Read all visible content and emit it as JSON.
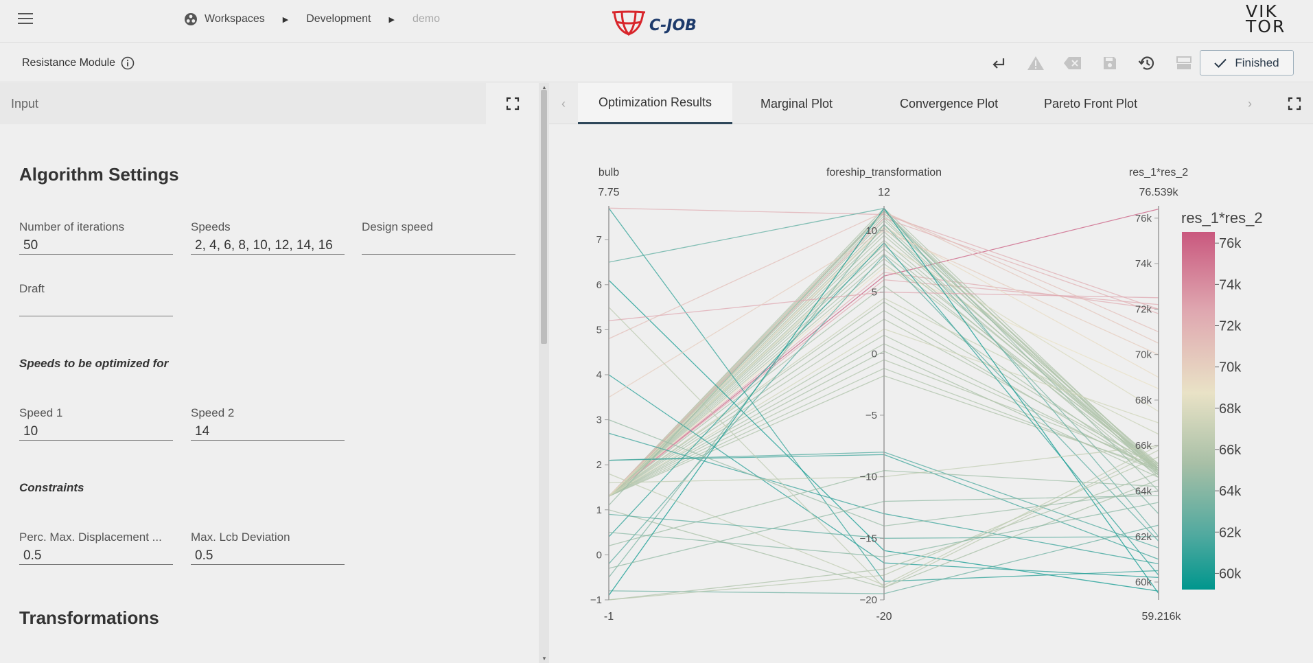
{
  "header": {
    "breadcrumbs": [
      {
        "label": "Workspaces"
      },
      {
        "label": "Development"
      },
      {
        "label": "demo"
      }
    ],
    "cjob_logo_text": "C-JOB",
    "viktor_logo_line1": "VIK",
    "viktor_logo_line2": "TOR"
  },
  "subbar": {
    "module_title": "Resistance Module",
    "finished_label": "Finished"
  },
  "left": {
    "panel_title": "Input",
    "algorithm_title": "Algorithm Settings",
    "fields": {
      "iterations": {
        "label": "Number of iterations",
        "value": "50"
      },
      "speeds": {
        "label": "Speeds",
        "value": "2, 4, 6, 8, 10, 12, 14, 16"
      },
      "design_speed": {
        "label": "Design speed",
        "value": ""
      },
      "draft": {
        "label": "Draft",
        "value": ""
      },
      "speed1": {
        "label": "Speed 1",
        "value": "10"
      },
      "speed2": {
        "label": "Speed 2",
        "value": "14"
      },
      "perc_disp": {
        "label": "Perc. Max. Displacement ...",
        "value": "0.5"
      },
      "lcb_dev": {
        "label": "Max. Lcb Deviation",
        "value": "0.5"
      }
    },
    "speeds_section": "Speeds to be optimized for",
    "constraints_section": "Constraints",
    "transformations_title": "Transformations"
  },
  "tabs": [
    {
      "label": "Optimization Results"
    },
    {
      "label": "Marginal Plot"
    },
    {
      "label": "Convergence Plot"
    },
    {
      "label": "Pareto Front Plot"
    }
  ],
  "chart_data": {
    "type": "parallel_coordinates",
    "dimensions": [
      {
        "label": "bulb",
        "range": [
          -1,
          7.75
        ],
        "range_labels": [
          "7.75",
          "-1"
        ],
        "ticks": [
          "7",
          "6",
          "5",
          "4",
          "3",
          "2",
          "1",
          "0",
          "-1"
        ]
      },
      {
        "label": "foreship_transformation",
        "range": [
          -20,
          12
        ],
        "range_labels": [
          "12",
          "-20"
        ],
        "ticks": [
          "10",
          "5",
          "0",
          "-5",
          "-10",
          "-15",
          "-20"
        ]
      },
      {
        "label": "res_1*res_2",
        "range": [
          59216,
          76539
        ],
        "range_labels": [
          "76.539k",
          "59.216k"
        ],
        "ticks": [
          "76k",
          "74k",
          "72k",
          "70k",
          "68k",
          "66k",
          "64k",
          "62k",
          "60k"
        ]
      }
    ],
    "colorbar": {
      "title": "res_1*res_2",
      "ticks": [
        "76k",
        "74k",
        "72k",
        "70k",
        "68k",
        "66k",
        "64k",
        "62k",
        "60k"
      ],
      "colors": [
        "#c9587e",
        "#dfa7b0",
        "#e9e2c6",
        "#a7bfa6",
        "#4fa99f",
        "#00968d"
      ]
    },
    "lines": [
      [
        1.3,
        6.3,
        76.4
      ],
      [
        1.3,
        6.6,
        72.0
      ],
      [
        1.3,
        6.0,
        72.2
      ],
      [
        1.3,
        7.0,
        68.5
      ],
      [
        1.3,
        11.8,
        65.0
      ],
      [
        1.3,
        11.6,
        64.8
      ],
      [
        1.3,
        11.4,
        64.9
      ],
      [
        1.3,
        11.2,
        65.1
      ],
      [
        1.3,
        11.0,
        64.7
      ],
      [
        1.3,
        10.8,
        65.0
      ],
      [
        1.3,
        10.5,
        64.9
      ],
      [
        1.3,
        10.2,
        65.2
      ],
      [
        1.3,
        9.9,
        64.8
      ],
      [
        1.3,
        9.6,
        65.0
      ],
      [
        1.3,
        9.2,
        64.9
      ],
      [
        1.3,
        8.8,
        65.1
      ],
      [
        1.3,
        8.5,
        64.6
      ],
      [
        1.3,
        8.1,
        65.0
      ],
      [
        1.3,
        7.7,
        64.9
      ],
      [
        1.3,
        7.3,
        65.2
      ],
      [
        1.3,
        5.5,
        64.7
      ],
      [
        1.3,
        4.2,
        65.0
      ],
      [
        1.3,
        3.5,
        64.8
      ],
      [
        1.3,
        2.8,
        65.1
      ],
      [
        1.3,
        1.5,
        64.9
      ],
      [
        1.3,
        0.8,
        65.0
      ],
      [
        1.3,
        0.2,
        64.6
      ],
      [
        1.3,
        -0.5,
        65.2
      ],
      [
        1.3,
        -1.2,
        64.9
      ],
      [
        1.3,
        -1.8,
        65.0
      ],
      [
        1.3,
        11.5,
        70.5
      ],
      [
        1.3,
        11.0,
        71.8
      ],
      [
        1.3,
        10.3,
        69.0
      ],
      [
        1.3,
        9.0,
        67.5
      ],
      [
        1.3,
        4.5,
        66.5
      ],
      [
        1.3,
        2.0,
        67.0
      ],
      [
        7.7,
        11.3,
        72.0
      ],
      [
        7.7,
        -18.5,
        60.5
      ],
      [
        6.5,
        11.8,
        62.0
      ],
      [
        6.1,
        -16.0,
        59.6
      ],
      [
        5.2,
        5.0,
        72.5
      ],
      [
        4.8,
        11.5,
        71.0
      ],
      [
        4.0,
        -17.0,
        60.2
      ],
      [
        3.5,
        10.0,
        70.0
      ],
      [
        2.7,
        -13.0,
        60.8
      ],
      [
        2.1,
        -8.0,
        61.5
      ],
      [
        2.1,
        -8.2,
        61.0
      ],
      [
        1.0,
        -19.0,
        64.5
      ],
      [
        0.4,
        9.0,
        60.3
      ],
      [
        0.2,
        -9.5,
        64.2
      ],
      [
        -0.2,
        8.0,
        61.8
      ],
      [
        -0.5,
        10.5,
        63.0
      ],
      [
        -0.8,
        -19.5,
        62.5
      ],
      [
        -1.0,
        -17.5,
        64.8
      ],
      [
        -1.0,
        -18.0,
        65.5
      ],
      [
        -0.9,
        11.8,
        59.5
      ],
      [
        0.5,
        -16.5,
        63.5
      ],
      [
        1.6,
        -10.0,
        66.0
      ],
      [
        3.0,
        -14.0,
        64.0
      ],
      [
        5.5,
        -19.0,
        65.8
      ],
      [
        1.8,
        -18.8,
        66.0
      ],
      [
        -0.3,
        -12.0,
        63.8
      ],
      [
        0.9,
        -15.0,
        62.0
      ],
      [
        1.1,
        11.6,
        64.0
      ]
    ]
  }
}
